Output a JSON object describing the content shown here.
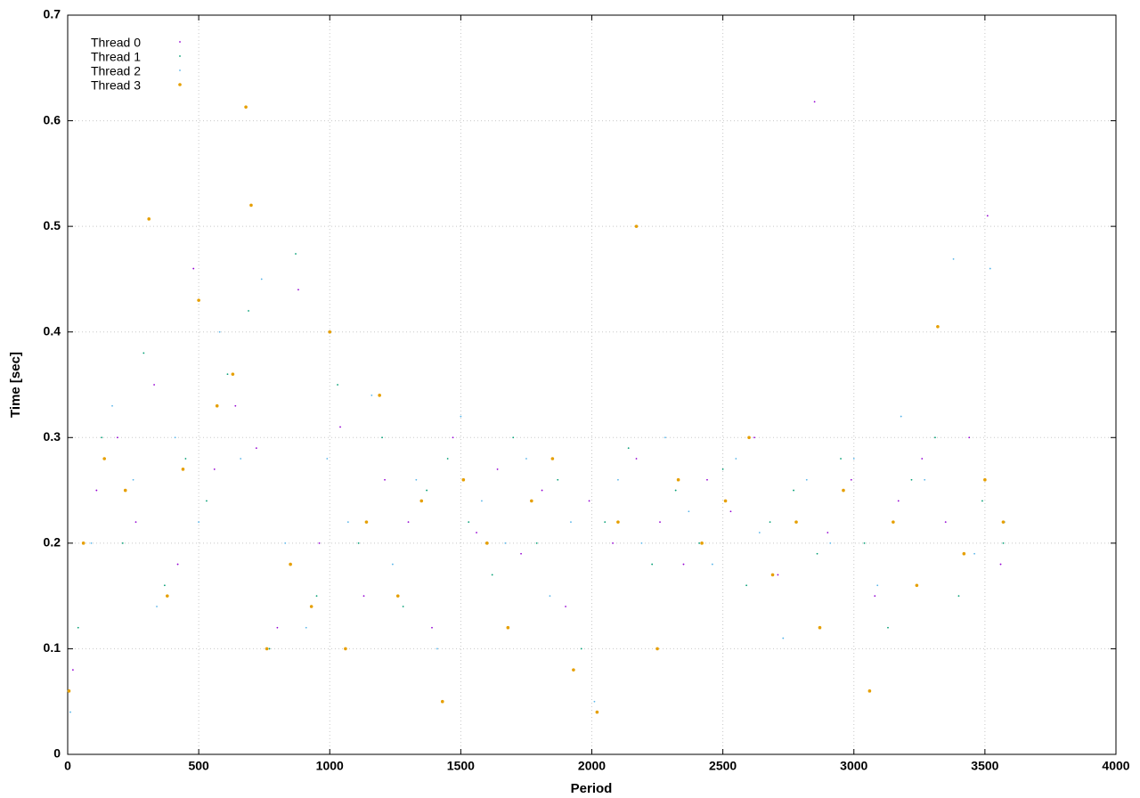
{
  "chart_data": {
    "type": "scatter",
    "x_label": "Period",
    "y_label": "Time [sec]",
    "xlim": [
      0,
      4000
    ],
    "xticks": [
      0,
      500,
      1000,
      1500,
      2000,
      2500,
      3000,
      3500,
      4000
    ],
    "ylim": [
      0,
      0.7
    ],
    "yticks": [
      0,
      0.1,
      0.2,
      0.3,
      0.4,
      0.5,
      0.6,
      0.7
    ],
    "grid": true,
    "legend_position": "top-left",
    "series": [
      {
        "name": "Thread 0",
        "color": "#9400d3",
        "x": [
          20,
          110,
          190,
          260,
          330,
          420,
          480,
          560,
          640,
          720,
          800,
          880,
          960,
          1040,
          1130,
          1210,
          1300,
          1390,
          1470,
          1560,
          1640,
          1730,
          1810,
          1900,
          1990,
          2080,
          2170,
          2260,
          2350,
          2440,
          2530,
          2620,
          2710,
          2850,
          2900,
          2990,
          3080,
          3170,
          3260,
          3350,
          3440,
          3510,
          3560
        ],
        "values": [
          0.08,
          0.25,
          0.3,
          0.22,
          0.35,
          0.18,
          0.46,
          0.27,
          0.33,
          0.29,
          0.12,
          0.44,
          0.2,
          0.31,
          0.15,
          0.26,
          0.22,
          0.12,
          0.3,
          0.21,
          0.27,
          0.19,
          0.25,
          0.14,
          0.24,
          0.2,
          0.28,
          0.22,
          0.18,
          0.26,
          0.23,
          0.3,
          0.17,
          0.618,
          0.21,
          0.26,
          0.15,
          0.24,
          0.28,
          0.22,
          0.3,
          0.51,
          0.18
        ]
      },
      {
        "name": "Thread 1",
        "color": "#009e73",
        "x": [
          40,
          130,
          210,
          290,
          370,
          450,
          530,
          610,
          690,
          770,
          870,
          950,
          1030,
          1110,
          1200,
          1280,
          1370,
          1450,
          1530,
          1620,
          1700,
          1790,
          1870,
          1960,
          2050,
          2140,
          2230,
          2320,
          2410,
          2500,
          2590,
          2680,
          2770,
          2860,
          2950,
          3040,
          3130,
          3220,
          3310,
          3400,
          3490,
          3570
        ],
        "values": [
          0.12,
          0.3,
          0.2,
          0.38,
          0.16,
          0.28,
          0.24,
          0.36,
          0.42,
          0.1,
          0.474,
          0.15,
          0.35,
          0.2,
          0.3,
          0.14,
          0.25,
          0.28,
          0.22,
          0.17,
          0.3,
          0.2,
          0.26,
          0.1,
          0.22,
          0.29,
          0.18,
          0.25,
          0.2,
          0.27,
          0.16,
          0.22,
          0.25,
          0.19,
          0.28,
          0.2,
          0.12,
          0.26,
          0.3,
          0.15,
          0.24,
          0.2
        ]
      },
      {
        "name": "Thread 2",
        "color": "#56b4e9",
        "x": [
          10,
          90,
          170,
          250,
          340,
          410,
          500,
          580,
          660,
          740,
          830,
          910,
          990,
          1070,
          1160,
          1240,
          1330,
          1410,
          1500,
          1580,
          1670,
          1750,
          1840,
          1920,
          2010,
          2100,
          2190,
          2280,
          2370,
          2460,
          2550,
          2640,
          2730,
          2820,
          2910,
          3000,
          3090,
          3180,
          3270,
          3380,
          3460,
          3520,
          3575
        ],
        "values": [
          0.04,
          0.2,
          0.33,
          0.26,
          0.14,
          0.3,
          0.22,
          0.4,
          0.28,
          0.45,
          0.2,
          0.12,
          0.28,
          0.22,
          0.34,
          0.18,
          0.26,
          0.1,
          0.32,
          0.24,
          0.2,
          0.28,
          0.15,
          0.22,
          0.05,
          0.26,
          0.2,
          0.3,
          0.23,
          0.18,
          0.28,
          0.21,
          0.11,
          0.26,
          0.2,
          0.28,
          0.16,
          0.32,
          0.26,
          0.469,
          0.19,
          0.46,
          0.22
        ]
      },
      {
        "name": "Thread 3",
        "color": "#e69f00",
        "x": [
          5,
          60,
          140,
          220,
          310,
          380,
          440,
          500,
          570,
          630,
          680,
          700,
          760,
          850,
          930,
          1000,
          1060,
          1140,
          1190,
          1260,
          1350,
          1430,
          1510,
          1600,
          1680,
          1770,
          1850,
          1930,
          2020,
          2100,
          2170,
          2250,
          2330,
          2420,
          2510,
          2600,
          2690,
          2780,
          2870,
          2960,
          3060,
          3150,
          3240,
          3320,
          3420,
          3500,
          3570
        ],
        "values": [
          0.06,
          0.2,
          0.28,
          0.25,
          0.507,
          0.15,
          0.27,
          0.43,
          0.33,
          0.36,
          0.613,
          0.52,
          0.1,
          0.18,
          0.14,
          0.4,
          0.1,
          0.22,
          0.34,
          0.15,
          0.24,
          0.05,
          0.26,
          0.2,
          0.12,
          0.24,
          0.28,
          0.08,
          0.04,
          0.22,
          0.5,
          0.1,
          0.26,
          0.2,
          0.24,
          0.3,
          0.17,
          0.22,
          0.12,
          0.25,
          0.06,
          0.22,
          0.16,
          0.405,
          0.19,
          0.26,
          0.22
        ]
      }
    ]
  }
}
